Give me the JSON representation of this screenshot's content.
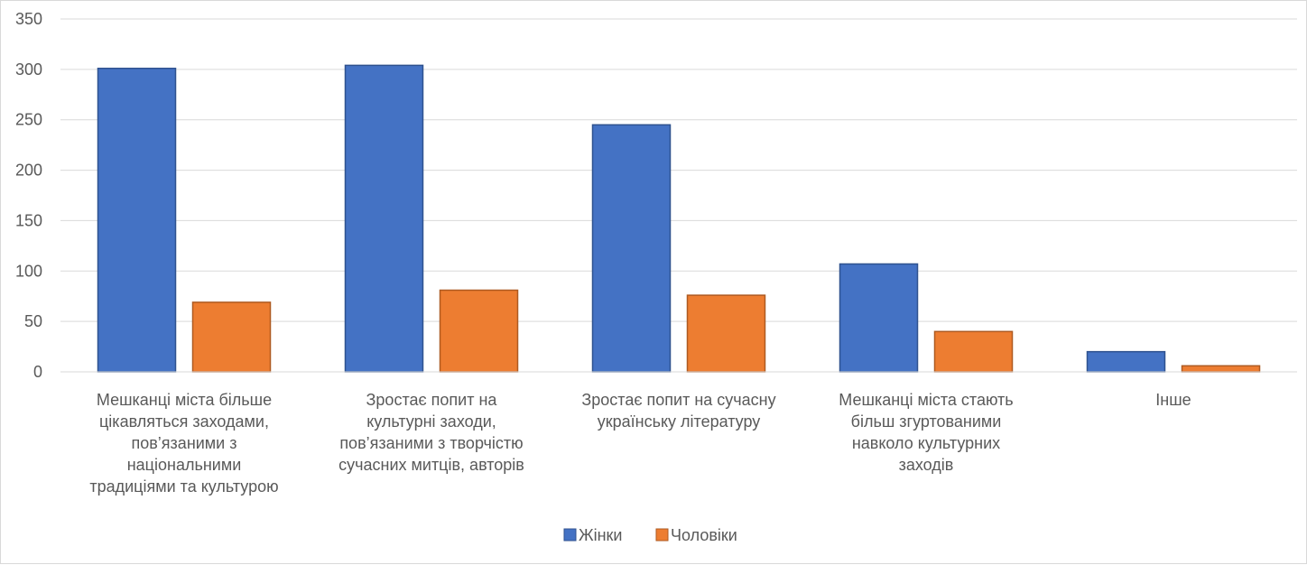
{
  "chart_data": {
    "type": "bar",
    "title": "",
    "xlabel": "",
    "ylabel": "",
    "ylim": [
      0,
      350
    ],
    "yticks": [
      0,
      50,
      100,
      150,
      200,
      250,
      300,
      350
    ],
    "grid": true,
    "legend_position": "bottom",
    "categories": [
      [
        "Мешканці міста більше",
        "цікавляться заходами,",
        "пов’язаними з",
        "національними",
        "традиціями та культурою"
      ],
      [
        "Зростає попит на",
        "культурні заходи,",
        "пов’язаними з творчістю",
        "сучасних митців, авторів"
      ],
      [
        "Зростає попит на сучасну",
        "українську літературу"
      ],
      [
        "Мешканці міста стають",
        "більш згуртованими",
        "навколо культурних",
        "заходів"
      ],
      [
        "Інше"
      ]
    ],
    "series": [
      {
        "name": "Жінки",
        "color": "#4472c4",
        "edge_color": "#2f528f",
        "values": [
          301,
          304,
          245,
          107,
          20
        ]
      },
      {
        "name": "Чоловіки",
        "color": "#ed7d31",
        "edge_color": "#ae5a21",
        "values": [
          69,
          81,
          76,
          40,
          6
        ]
      }
    ]
  }
}
